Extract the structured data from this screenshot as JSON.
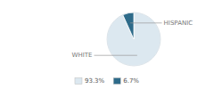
{
  "chart_data": {
    "type": "pie",
    "categories": [
      "WHITE",
      "HISPANIC"
    ],
    "values": [
      93.3,
      6.7
    ],
    "value_labels": [
      "93.3%",
      "6.7%"
    ],
    "colors": [
      "#dce8f0",
      "#2e6b8a"
    ],
    "legend": "bottom"
  }
}
